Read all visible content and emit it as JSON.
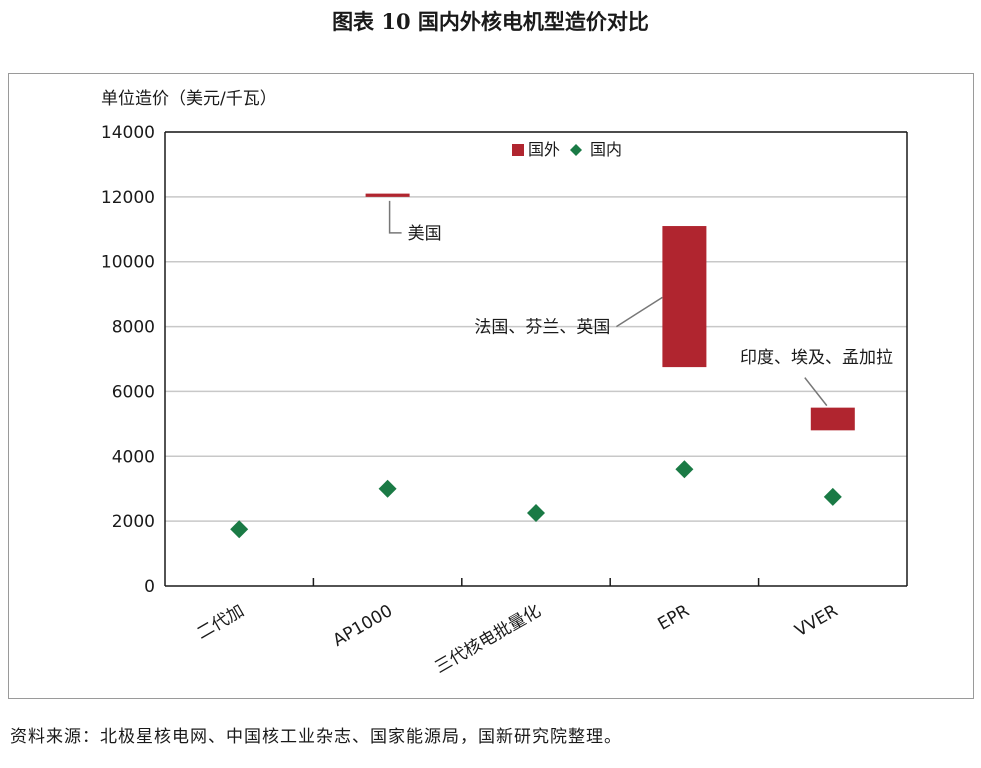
{
  "figure_title": "图表 10 国内外核电机型造价对比",
  "source_note": "资料来源：北极星核电网、中国核工业杂志、国家能源局，国新研究院整理。",
  "colors": {
    "foreign": "#b0252f",
    "domestic": "#1a7a45",
    "axis": "#1a1a1a",
    "grid": "#c8c8c8"
  },
  "chart_data": {
    "type": "bar",
    "ylabel": "单位造价（美元/千瓦）",
    "ylim": [
      0,
      14000
    ],
    "yticks": [
      0,
      2000,
      4000,
      6000,
      8000,
      10000,
      12000,
      14000
    ],
    "categories": [
      "二代加",
      "AP1000",
      "三代核电批量化",
      "EPR",
      "VVER"
    ],
    "legend": {
      "placement": "top-center",
      "entries": [
        "国外",
        "国内"
      ]
    },
    "series": [
      {
        "name": "国外",
        "kind": "floating-bar",
        "values": [
          null,
          [
            12000,
            12100
          ],
          null,
          [
            6750,
            11100
          ],
          [
            4800,
            5500
          ]
        ]
      },
      {
        "name": "国内",
        "kind": "diamond-marker",
        "values": [
          1750,
          3000,
          null,
          3600,
          2750
        ],
        "values_full": [
          1750,
          3000,
          2250,
          3600,
          2750
        ]
      }
    ],
    "annotations": [
      {
        "text": "美国",
        "category": "AP1000"
      },
      {
        "text": "法国、芬兰、英国",
        "category": "EPR"
      },
      {
        "text": "印度、埃及、孟加拉",
        "category": "VVER"
      }
    ]
  }
}
